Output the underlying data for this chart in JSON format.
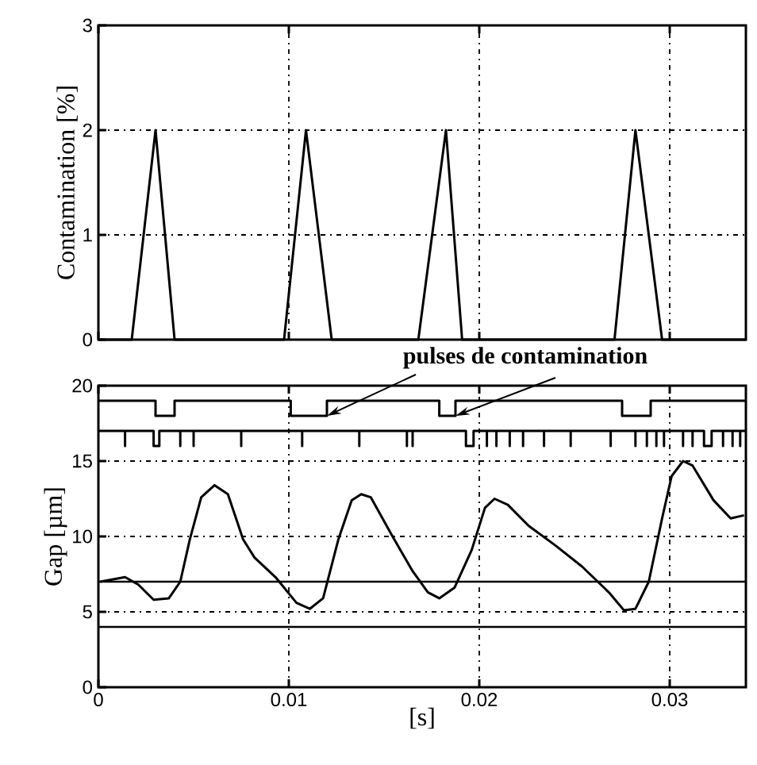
{
  "chart_data": [
    {
      "type": "line",
      "ylabel": "Contamination [%]",
      "xlim": [
        0,
        0.034
      ],
      "ylim": [
        0,
        3
      ],
      "xticks": [
        0,
        0.01,
        0.02,
        0.03
      ],
      "yticks": [
        0,
        1,
        2,
        3
      ],
      "tick_labels": "y",
      "grid": true,
      "marker": "none",
      "line_style": "solid",
      "series": [
        {
          "color": "#000000",
          "x": [
            0,
            0.00175,
            0.003,
            0.004,
            0.00975,
            0.0109,
            0.01225,
            0.0168,
            0.01825,
            0.0191,
            0.0271,
            0.0282,
            0.0296,
            0.034
          ],
          "values": [
            0,
            0,
            2,
            0,
            0,
            2,
            0,
            0,
            2,
            0,
            0,
            2,
            0,
            0
          ]
        }
      ]
    },
    {
      "type": "line",
      "ylabel": "Gap [µm]",
      "xlabel": "[s]",
      "xlim": [
        0,
        0.034
      ],
      "ylim": [
        0,
        20
      ],
      "xticks": [
        0,
        0.01,
        0.02,
        0.03
      ],
      "yticks": [
        0,
        5,
        10,
        15,
        20
      ],
      "grid": true,
      "marker": "none",
      "line_style": "solid",
      "annotations": [
        "pulses de contamination"
      ],
      "ref_lines": [
        {
          "axis": "y",
          "value": 7,
          "color": "#000000",
          "line_style": "solid"
        },
        {
          "axis": "y",
          "value": 4,
          "color": "#000000",
          "line_style": "solid"
        }
      ],
      "series": [
        {
          "color": "#000000",
          "x": [
            0.0001,
            0.0014,
            0.0021,
            0.0029,
            0.0037,
            0.0043,
            0.0048,
            0.0054,
            0.0061,
            0.0068,
            0.0076,
            0.0082,
            0.0093,
            0.0104,
            0.0111,
            0.0118,
            0.0126,
            0.0133,
            0.0138,
            0.0143,
            0.0154,
            0.0165,
            0.0173,
            0.0179,
            0.0187,
            0.0196,
            0.0203,
            0.0208,
            0.0215,
            0.0226,
            0.024,
            0.0254,
            0.0268,
            0.0276,
            0.0282,
            0.0289,
            0.0296,
            0.0301,
            0.0307,
            0.0312,
            0.0323,
            0.0332,
            0.0339
          ],
          "values": [
            7.0,
            7.3,
            6.8,
            5.8,
            5.9,
            7.0,
            9.8,
            12.6,
            13.4,
            12.8,
            9.8,
            8.6,
            7.3,
            5.6,
            5.2,
            5.9,
            9.8,
            12.4,
            12.8,
            12.6,
            10.1,
            7.7,
            6.3,
            5.9,
            6.6,
            9.1,
            11.9,
            12.5,
            12.1,
            10.7,
            9.4,
            8.0,
            6.3,
            5.1,
            5.2,
            7.0,
            11.2,
            14.0,
            15.0,
            14.7,
            12.4,
            11.2,
            11.4
          ]
        },
        {
          "type": "step",
          "color": "#000000",
          "x": [
            0,
            0.003,
            0.004,
            0.0101,
            0.012,
            0.0179,
            0.01875,
            0.0275,
            0.029,
            0.034
          ],
          "values": [
            19,
            18,
            19,
            18,
            19,
            18,
            19,
            18,
            19,
            19
          ]
        },
        {
          "color": "#000000",
          "x": [
            0,
            0.0014,
            0.0014,
            0.0014,
            0.0029,
            0.0029,
            0.0032,
            0.0032,
            0.0043,
            0.0043,
            0.0043,
            0.005,
            0.005,
            0.005,
            0.0075,
            0.0075,
            0.0075,
            0.0107,
            0.0107,
            0.0107,
            0.0137,
            0.0137,
            0.0137,
            0.0162,
            0.0162,
            0.0162,
            0.0165,
            0.0165,
            0.0165,
            0.0193,
            0.0193,
            0.0197,
            0.0197,
            0.0204,
            0.0204,
            0.0204,
            0.0209,
            0.0209,
            0.0209,
            0.0216,
            0.0216,
            0.0216,
            0.0223,
            0.0223,
            0.0223,
            0.0234,
            0.0234,
            0.0234,
            0.0248,
            0.0248,
            0.0248,
            0.0269,
            0.0269,
            0.0269,
            0.0282,
            0.0282,
            0.0282,
            0.0288,
            0.0288,
            0.0288,
            0.0293,
            0.0293,
            0.0293,
            0.0297,
            0.0297,
            0.0297,
            0.0307,
            0.0307,
            0.0307,
            0.0312,
            0.0312,
            0.0312,
            0.0318,
            0.0318,
            0.0322,
            0.0322,
            0.0328,
            0.0328,
            0.0328,
            0.0333,
            0.0333,
            0.0333,
            0.0337,
            0.0337,
            0.0337,
            0.034
          ],
          "values": [
            17,
            17,
            16,
            17,
            17,
            16,
            16,
            17,
            17,
            16,
            17,
            17,
            16,
            17,
            17,
            16,
            17,
            17,
            16,
            17,
            17,
            16,
            17,
            17,
            16,
            17,
            17,
            16,
            17,
            17,
            16,
            16,
            17,
            17,
            16,
            17,
            17,
            16,
            17,
            17,
            16,
            17,
            17,
            16,
            17,
            17,
            16,
            17,
            17,
            16,
            17,
            17,
            16,
            17,
            17,
            16,
            17,
            17,
            16,
            17,
            17,
            16,
            17,
            17,
            16,
            17,
            17,
            16,
            17,
            17,
            16,
            17,
            17,
            16,
            16,
            17,
            17,
            16,
            17,
            17,
            16,
            17,
            17,
            16,
            17,
            17
          ]
        }
      ]
    }
  ]
}
